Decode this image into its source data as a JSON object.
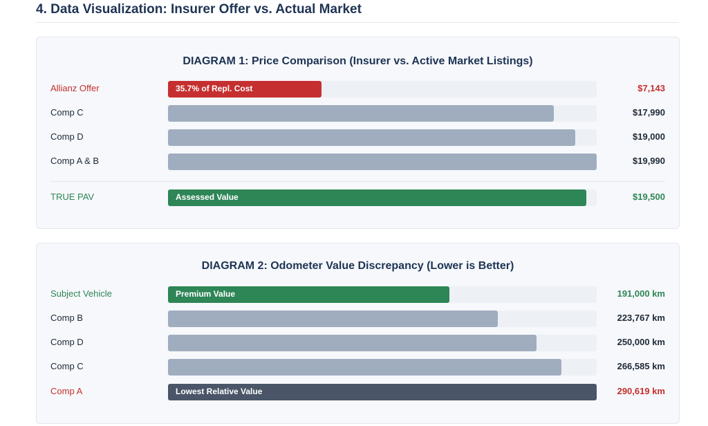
{
  "section_title": "4. Data Visualization: Insurer Offer vs. Actual Market",
  "chart_data": [
    {
      "type": "bar",
      "orientation": "horizontal",
      "title": "DIAGRAM 1: Price Comparison (Insurer vs. Active Market Listings)",
      "xlim": [
        0,
        19990
      ],
      "rows": [
        {
          "label": "Allianz Offer",
          "value": 7143,
          "value_label": "$7,143",
          "bar_text": "35.7% of Repl. Cost",
          "color": "#c62f2f",
          "tone": "red"
        },
        {
          "label": "Comp C",
          "value": 17990,
          "value_label": "$17,990",
          "bar_text": "",
          "color": "#a0adbf",
          "tone": "normal"
        },
        {
          "label": "Comp D",
          "value": 19000,
          "value_label": "$19,000",
          "bar_text": "",
          "color": "#a0adbf",
          "tone": "normal"
        },
        {
          "label": "Comp A & B",
          "value": 19990,
          "value_label": "$19,990",
          "bar_text": "",
          "color": "#a0adbf",
          "tone": "normal"
        },
        {
          "label": "TRUE PAV",
          "value": 19500,
          "value_label": "$19,500",
          "bar_text": "Assessed Value",
          "color": "#2e8556",
          "tone": "green"
        }
      ]
    },
    {
      "type": "bar",
      "orientation": "horizontal",
      "title": "DIAGRAM 2: Odometer Value Discrepancy (Lower is Better)",
      "xlim": [
        0,
        290619
      ],
      "rows": [
        {
          "label": "Subject Vehicle",
          "value": 191000,
          "value_label": "191,000 km",
          "bar_text": "Premium Value",
          "color": "#2e8556",
          "tone": "green"
        },
        {
          "label": "Comp B",
          "value": 223767,
          "value_label": "223,767 km",
          "bar_text": "",
          "color": "#a0adbf",
          "tone": "normal"
        },
        {
          "label": "Comp D",
          "value": 250000,
          "value_label": "250,000 km",
          "bar_text": "",
          "color": "#a0adbf",
          "tone": "normal"
        },
        {
          "label": "Comp C",
          "value": 266585,
          "value_label": "266,585 km",
          "bar_text": "",
          "color": "#a0adbf",
          "tone": "normal"
        },
        {
          "label": "Comp A",
          "value": 290619,
          "value_label": "290,619 km",
          "bar_text": "Lowest Relative Value",
          "color": "#4a5568",
          "tone": "red"
        }
      ]
    }
  ]
}
